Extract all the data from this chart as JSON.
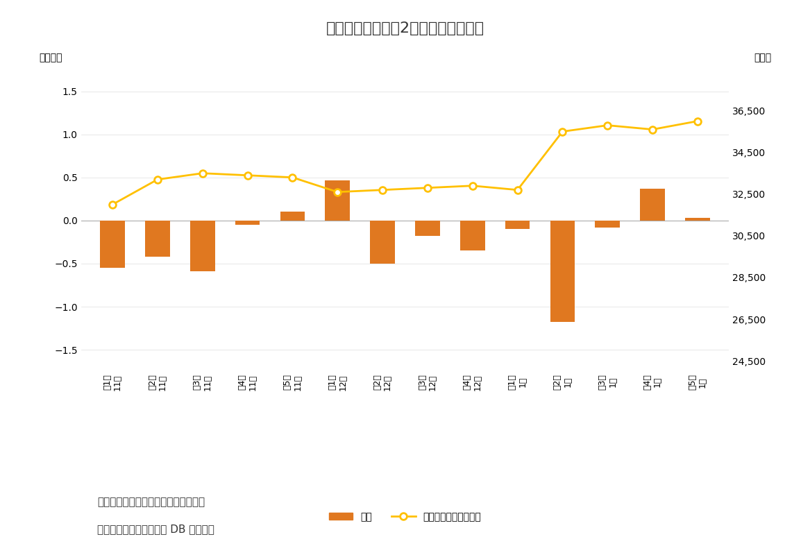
{
  "title": "図表３　個人は第2週に大幅売り越し",
  "categories": [
    "第1週\n11月",
    "第2週\n11月",
    "第3週\n11月",
    "第4週\n11月",
    "第5週\n11月",
    "第1週\n12月",
    "第2週\n12月",
    "第3週\n12月",
    "第4週\n12月",
    "第1週\n1月",
    "第2週\n1月",
    "第3週\n1月",
    "第4週\n1月",
    "第5週\n1月"
  ],
  "bar_values": [
    -0.55,
    -0.42,
    -0.59,
    -0.05,
    0.1,
    0.47,
    -0.5,
    -0.18,
    -0.35,
    -0.1,
    -1.18,
    -0.08,
    0.37,
    0.03
  ],
  "line_values": [
    32000,
    33200,
    33500,
    33400,
    33300,
    32600,
    32700,
    32800,
    32900,
    32700,
    35500,
    35800,
    35600,
    36000
  ],
  "bar_color": "#E07820",
  "line_color": "#FFC000",
  "left_ylabel": "（兆円）",
  "right_ylabel": "（円）",
  "ylim_left": [
    -1.75,
    1.8
  ],
  "ylim_right": [
    24000,
    38667
  ],
  "left_yticks": [
    -1.5,
    -1.0,
    -0.5,
    0.0,
    0.5,
    1.0,
    1.5
  ],
  "right_yticks": [
    24500,
    26500,
    28500,
    30500,
    32500,
    34500,
    36500
  ],
  "legend_bar": "個人",
  "legend_line": "日経平均株価（右軸）",
  "note1": "（注）個人の現物と先物の合計、週次",
  "note2": "（資料）ニッセイ基礎研 DB から作成",
  "background_color": "#FFFFFF",
  "grid_color": "#DDDDDD"
}
